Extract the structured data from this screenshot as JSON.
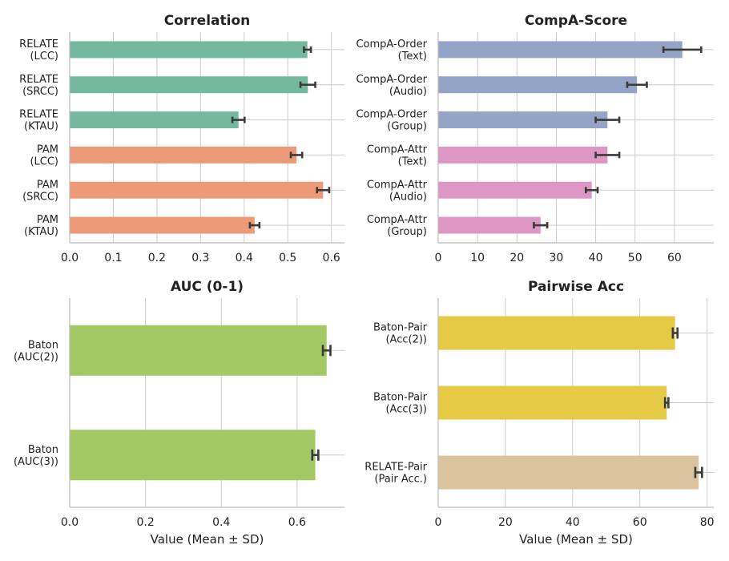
{
  "chart_data": [
    {
      "type": "bar",
      "orientation": "horizontal",
      "title": "Correlation",
      "xlabel": "",
      "xlim": [
        0,
        0.63
      ],
      "xticks": [
        0.0,
        0.1,
        0.2,
        0.3,
        0.4,
        0.5,
        0.6
      ],
      "xtick_labels": [
        "0.0",
        "0.1",
        "0.2",
        "0.3",
        "0.4",
        "0.5",
        "0.6"
      ],
      "grid": true,
      "bars": [
        {
          "label": [
            "RELATE",
            "(LCC)"
          ],
          "value": 0.545,
          "sd": 0.008,
          "color": "#74b8a0"
        },
        {
          "label": [
            "RELATE",
            "(SRCC)"
          ],
          "value": 0.546,
          "sd": 0.017,
          "color": "#74b8a0"
        },
        {
          "label": [
            "RELATE",
            "(KTAU)"
          ],
          "value": 0.387,
          "sd": 0.014,
          "color": "#74b8a0"
        },
        {
          "label": [
            "PAM",
            "(LCC)"
          ],
          "value": 0.52,
          "sd": 0.013,
          "color": "#ec9a78"
        },
        {
          "label": [
            "PAM",
            "(SRCC)"
          ],
          "value": 0.581,
          "sd": 0.014,
          "color": "#ec9a78"
        },
        {
          "label": [
            "PAM",
            "(KTAU)"
          ],
          "value": 0.424,
          "sd": 0.011,
          "color": "#ec9a78"
        }
      ]
    },
    {
      "type": "bar",
      "orientation": "horizontal",
      "title": "CompA-Score",
      "xlabel": "",
      "xlim": [
        0,
        70
      ],
      "xticks": [
        0,
        10,
        20,
        30,
        40,
        50,
        60
      ],
      "xtick_labels": [
        "0",
        "10",
        "20",
        "30",
        "40",
        "50",
        "60"
      ],
      "grid": true,
      "bars": [
        {
          "label": [
            "CompA-Order",
            "(Text)"
          ],
          "value": 62.0,
          "sd": 4.8,
          "color": "#94a4c6"
        },
        {
          "label": [
            "CompA-Order",
            "(Audio)"
          ],
          "value": 50.5,
          "sd": 2.5,
          "color": "#94a4c6"
        },
        {
          "label": [
            "CompA-Order",
            "(Group)"
          ],
          "value": 43.0,
          "sd": 3.0,
          "color": "#94a4c6"
        },
        {
          "label": [
            "CompA-Attr",
            "(Text)"
          ],
          "value": 43.0,
          "sd": 3.0,
          "color": "#de97c4"
        },
        {
          "label": [
            "CompA-Attr",
            "(Audio)"
          ],
          "value": 39.0,
          "sd": 1.5,
          "color": "#de97c4"
        },
        {
          "label": [
            "CompA-Attr",
            "(Group)"
          ],
          "value": 26.0,
          "sd": 1.7,
          "color": "#de97c4"
        }
      ]
    },
    {
      "type": "bar",
      "orientation": "horizontal",
      "title": "AUC (0-1)",
      "xlabel": "Value (Mean ± SD)",
      "xlim": [
        0,
        0.725
      ],
      "xticks": [
        0.0,
        0.2,
        0.4,
        0.6
      ],
      "xtick_labels": [
        "0.0",
        "0.2",
        "0.4",
        "0.6"
      ],
      "grid": true,
      "bars": [
        {
          "label": [
            "Baton",
            "(AUC(2))"
          ],
          "value": 0.678,
          "sd": 0.01,
          "color": "#a2c964"
        },
        {
          "label": [
            "Baton",
            "(AUC(3))"
          ],
          "value": 0.648,
          "sd": 0.008,
          "color": "#a2c964"
        }
      ]
    },
    {
      "type": "bar",
      "orientation": "horizontal",
      "title": "Pairwise Acc",
      "xlabel": "Value (Mean ± SD)",
      "xlim": [
        0,
        82
      ],
      "xticks": [
        0,
        20,
        40,
        60,
        80
      ],
      "xtick_labels": [
        "0",
        "20",
        "40",
        "60",
        "80"
      ],
      "grid": true,
      "bars": [
        {
          "label": [
            "Baton-Pair",
            "(Acc(2))"
          ],
          "value": 70.5,
          "sd": 0.7,
          "color": "#e6ca46"
        },
        {
          "label": [
            "Baton-Pair",
            "(Acc(3))"
          ],
          "value": 68.0,
          "sd": 0.5,
          "color": "#e6ca46"
        },
        {
          "label": [
            "RELATE-Pair",
            "(Pair Acc.)"
          ],
          "value": 77.5,
          "sd": 1.0,
          "color": "#dac39d"
        }
      ]
    }
  ]
}
